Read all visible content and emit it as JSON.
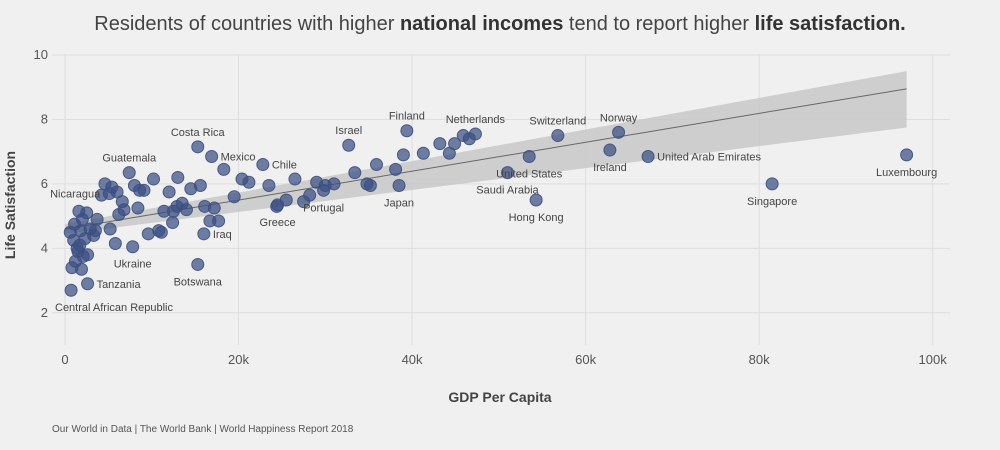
{
  "colors": {
    "background": "#f0f0f0",
    "point": "#3b4f82",
    "band": "#c8c8c8",
    "trend": "#666666",
    "grid": "#dedede"
  },
  "chart_data": {
    "type": "scatter",
    "title_parts": [
      {
        "text": "Residents of countries with higher ",
        "bold": false
      },
      {
        "text": "national incomes",
        "bold": true
      },
      {
        "text": " tend to report higher ",
        "bold": false
      },
      {
        "text": "life satisfaction.",
        "bold": true
      }
    ],
    "xlabel": "GDP Per Capita",
    "ylabel": "Life Satisfaction",
    "source": "Our World in Data | The World Bank | World Happiness Report 2018",
    "xlim": [
      -1500,
      102000
    ],
    "ylim": [
      1,
      10
    ],
    "x_ticks": [
      0,
      20000,
      40000,
      60000,
      80000,
      100000
    ],
    "x_tick_labels": [
      "0",
      "20k",
      "40k",
      "60k",
      "80k",
      "100k"
    ],
    "y_ticks": [
      2,
      4,
      6,
      8,
      10
    ],
    "y_tick_labels": [
      "2",
      "4",
      "6",
      "8",
      "10"
    ],
    "grid": true,
    "trend": {
      "x": [
        0,
        97000
      ],
      "y": [
        4.6,
        8.95
      ],
      "band_lower": [
        4.45,
        7.75
      ],
      "band_upper": [
        4.75,
        9.5
      ]
    },
    "labeled_points": [
      {
        "label": "Luxembourg",
        "x": 97000,
        "y": 6.9,
        "anchor": "middle",
        "pos": "below"
      },
      {
        "label": "Singapore",
        "x": 81500,
        "y": 6.0,
        "anchor": "middle",
        "pos": "below"
      },
      {
        "label": "Norway",
        "x": 63800,
        "y": 7.6,
        "anchor": "middle",
        "pos": "above"
      },
      {
        "label": "Switzerland",
        "x": 56800,
        "y": 7.5,
        "anchor": "middle",
        "pos": "above"
      },
      {
        "label": "United Arab Emirates",
        "x": 67200,
        "y": 6.85,
        "anchor": "start",
        "pos": "right"
      },
      {
        "label": "Ireland",
        "x": 62800,
        "y": 7.05,
        "anchor": "middle",
        "pos": "below"
      },
      {
        "label": "United States",
        "x": 53500,
        "y": 6.85,
        "anchor": "middle",
        "pos": "below"
      },
      {
        "label": "Hong Kong",
        "x": 54300,
        "y": 5.5,
        "anchor": "middle",
        "pos": "below"
      },
      {
        "label": "Netherlands",
        "x": 47300,
        "y": 7.55,
        "anchor": "middle",
        "pos": "above"
      },
      {
        "label": "Saudi Arabia",
        "x": 51000,
        "y": 6.35,
        "anchor": "middle",
        "pos": "below"
      },
      {
        "label": "Finland",
        "x": 39400,
        "y": 7.65,
        "anchor": "middle",
        "pos": "above"
      },
      {
        "label": "Japan",
        "x": 38500,
        "y": 5.95,
        "anchor": "middle",
        "pos": "below"
      },
      {
        "label": "Israel",
        "x": 32700,
        "y": 7.2,
        "anchor": "middle",
        "pos": "above"
      },
      {
        "label": "Portugal",
        "x": 29800,
        "y": 5.8,
        "anchor": "middle",
        "pos": "below"
      },
      {
        "label": "Chile",
        "x": 22800,
        "y": 6.6,
        "anchor": "start",
        "pos": "right"
      },
      {
        "label": "Greece",
        "x": 24500,
        "y": 5.35,
        "anchor": "middle",
        "pos": "below"
      },
      {
        "label": "Mexico",
        "x": 16900,
        "y": 6.85,
        "anchor": "start",
        "pos": "right"
      },
      {
        "label": "Costa Rica",
        "x": 15300,
        "y": 7.15,
        "anchor": "middle",
        "pos": "above"
      },
      {
        "label": "Iraq",
        "x": 16000,
        "y": 4.45,
        "anchor": "start",
        "pos": "right"
      },
      {
        "label": "Botswana",
        "x": 15300,
        "y": 3.5,
        "anchor": "middle",
        "pos": "below"
      },
      {
        "label": "Guatemala",
        "x": 7400,
        "y": 6.35,
        "anchor": "middle",
        "pos": "above"
      },
      {
        "label": "Nicaragua",
        "x": 5100,
        "y": 5.7,
        "anchor": "end",
        "pos": "left"
      },
      {
        "label": "Ukraine",
        "x": 7800,
        "y": 4.05,
        "anchor": "middle",
        "pos": "below"
      },
      {
        "label": "Tanzania",
        "x": 2600,
        "y": 2.9,
        "anchor": "start",
        "pos": "right"
      },
      {
        "label": "Central African Republic",
        "x": 700,
        "y": 2.7,
        "anchor": "start",
        "pos": "below"
      }
    ],
    "other_points": [
      [
        800,
        3.4
      ],
      [
        1200,
        3.6
      ],
      [
        1500,
        3.9
      ],
      [
        1700,
        4.1
      ],
      [
        1900,
        3.35
      ],
      [
        2100,
        3.75
      ],
      [
        2300,
        4.3
      ],
      [
        2600,
        3.8
      ],
      [
        1000,
        4.25
      ],
      [
        1400,
        4.0
      ],
      [
        1800,
        4.55
      ],
      [
        600,
        4.5
      ],
      [
        1100,
        4.75
      ],
      [
        2500,
        5.1
      ],
      [
        2900,
        4.6
      ],
      [
        3300,
        4.4
      ],
      [
        3700,
        4.9
      ],
      [
        1600,
        5.15
      ],
      [
        2000,
        4.9
      ],
      [
        3500,
        4.55
      ],
      [
        4200,
        5.65
      ],
      [
        4600,
        6.0
      ],
      [
        5400,
        5.9
      ],
      [
        6000,
        5.75
      ],
      [
        6600,
        5.45
      ],
      [
        5800,
        4.15
      ],
      [
        5200,
        4.6
      ],
      [
        6200,
        5.05
      ],
      [
        6800,
        5.2
      ],
      [
        8000,
        5.95
      ],
      [
        8600,
        5.8
      ],
      [
        9100,
        5.8
      ],
      [
        10200,
        6.15
      ],
      [
        8400,
        5.25
      ],
      [
        9600,
        4.45
      ],
      [
        10800,
        4.55
      ],
      [
        11400,
        5.15
      ],
      [
        12000,
        5.75
      ],
      [
        12400,
        4.8
      ],
      [
        12900,
        5.3
      ],
      [
        13500,
        5.4
      ],
      [
        14000,
        5.2
      ],
      [
        14500,
        5.85
      ],
      [
        13000,
        6.2
      ],
      [
        15600,
        5.95
      ],
      [
        16100,
        5.3
      ],
      [
        16700,
        4.85
      ],
      [
        17200,
        5.25
      ],
      [
        17700,
        4.85
      ],
      [
        18300,
        6.45
      ],
      [
        19500,
        5.6
      ],
      [
        20400,
        6.15
      ],
      [
        21200,
        6.05
      ],
      [
        23500,
        5.95
      ],
      [
        24400,
        5.3
      ],
      [
        25500,
        5.5
      ],
      [
        26500,
        6.15
      ],
      [
        27500,
        5.45
      ],
      [
        28200,
        5.65
      ],
      [
        29000,
        6.05
      ],
      [
        30000,
        5.95
      ],
      [
        31000,
        6.0
      ],
      [
        33400,
        6.35
      ],
      [
        34800,
        6.0
      ],
      [
        35200,
        5.95
      ],
      [
        35900,
        6.6
      ],
      [
        38100,
        6.45
      ],
      [
        39000,
        6.9
      ],
      [
        41300,
        6.95
      ],
      [
        43200,
        7.25
      ],
      [
        44300,
        6.95
      ],
      [
        44900,
        7.25
      ],
      [
        45900,
        7.5
      ],
      [
        46600,
        7.4
      ],
      [
        12500,
        5.15
      ],
      [
        11100,
        4.5
      ]
    ]
  }
}
